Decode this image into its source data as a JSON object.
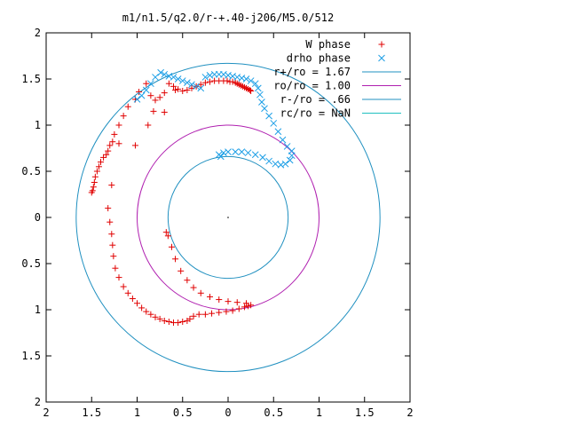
{
  "chart_data": {
    "type": "scatter",
    "title": "m1/n1.5/q2.0/r-+.40-j206/M5.0/512",
    "xlim": [
      2,
      -2
    ],
    "ylim": [
      -2,
      2
    ],
    "x_tick_values": [
      2,
      1.5,
      1,
      0.5,
      0,
      -0.5,
      -1,
      -1.5,
      -2
    ],
    "x_tick_labels": [
      "2",
      "1.5",
      "1",
      "0.5",
      "0",
      "0.5",
      "1",
      "1.5",
      "2"
    ],
    "y_tick_values": [
      2,
      1.5,
      1,
      0.5,
      0,
      -0.5,
      -1,
      -1.5,
      -2
    ],
    "y_tick_labels": [
      "2",
      "1.5",
      "1",
      "0.5",
      "0",
      "0.5",
      "1",
      "1.5",
      "2"
    ],
    "grid": false,
    "legend_position": "top-right",
    "colors": {
      "w_phase": "#e00000",
      "drho_phase": "#1b9ee6",
      "r_plus": "#2090c0",
      "ro": "#b020b0",
      "r_minus": "#2090c0",
      "rc": "#20c0c0"
    },
    "series": [
      {
        "name": "W phase",
        "marker": "plus",
        "color": "#e00000",
        "points": [
          [
            -0.25,
            1.37
          ],
          [
            -0.24,
            1.38
          ],
          [
            -0.22,
            1.39
          ],
          [
            -0.2,
            1.4
          ],
          [
            -0.18,
            1.41
          ],
          [
            -0.16,
            1.42
          ],
          [
            -0.14,
            1.43
          ],
          [
            -0.12,
            1.44
          ],
          [
            -0.1,
            1.45
          ],
          [
            -0.08,
            1.46
          ],
          [
            -0.05,
            1.47
          ],
          [
            -0.02,
            1.47
          ],
          [
            0.01,
            1.48
          ],
          [
            0.05,
            1.48
          ],
          [
            0.1,
            1.48
          ],
          [
            0.15,
            1.48
          ],
          [
            0.2,
            1.47
          ],
          [
            0.25,
            1.46
          ],
          [
            0.3,
            1.44
          ],
          [
            0.35,
            1.42
          ],
          [
            0.4,
            1.4
          ],
          [
            0.45,
            1.38
          ],
          [
            0.5,
            1.37
          ],
          [
            0.55,
            1.39
          ],
          [
            0.6,
            1.42
          ],
          [
            0.65,
            1.45
          ],
          [
            0.7,
            1.35
          ],
          [
            0.75,
            1.3
          ],
          [
            0.8,
            1.27
          ],
          [
            0.85,
            1.32
          ],
          [
            0.9,
            1.45
          ],
          [
            0.98,
            1.36
          ],
          [
            1.02,
            1.28
          ],
          [
            1.1,
            1.2
          ],
          [
            1.15,
            1.1
          ],
          [
            1.2,
            1.0
          ],
          [
            1.25,
            0.9
          ],
          [
            1.27,
            0.82
          ],
          [
            1.3,
            0.78
          ],
          [
            1.32,
            0.72
          ],
          [
            1.34,
            0.68
          ],
          [
            1.37,
            0.65
          ],
          [
            1.4,
            0.6
          ],
          [
            1.42,
            0.55
          ],
          [
            1.44,
            0.5
          ],
          [
            1.46,
            0.44
          ],
          [
            1.47,
            0.38
          ],
          [
            1.48,
            0.33
          ],
          [
            1.49,
            0.29
          ],
          [
            1.5,
            0.27
          ],
          [
            0.58,
            1.38
          ],
          [
            0.7,
            1.14
          ],
          [
            0.82,
            1.15
          ],
          [
            0.88,
            1.0
          ],
          [
            1.02,
            0.78
          ],
          [
            1.2,
            0.8
          ],
          [
            1.28,
            0.35
          ],
          [
            1.32,
            0.1
          ],
          [
            1.3,
            -0.05
          ],
          [
            1.28,
            -0.18
          ],
          [
            1.27,
            -0.3
          ],
          [
            1.26,
            -0.42
          ],
          [
            1.24,
            -0.55
          ],
          [
            1.2,
            -0.65
          ],
          [
            1.15,
            -0.75
          ],
          [
            1.1,
            -0.82
          ],
          [
            1.05,
            -0.88
          ],
          [
            1.0,
            -0.93
          ],
          [
            0.95,
            -0.98
          ],
          [
            0.9,
            -1.02
          ],
          [
            0.85,
            -1.05
          ],
          [
            0.8,
            -1.08
          ],
          [
            0.75,
            -1.1
          ],
          [
            0.7,
            -1.12
          ],
          [
            0.65,
            -1.13
          ],
          [
            0.6,
            -1.14
          ],
          [
            0.55,
            -1.14
          ],
          [
            0.5,
            -1.13
          ],
          [
            0.45,
            -1.12
          ],
          [
            0.42,
            -1.1
          ],
          [
            0.38,
            -1.07
          ],
          [
            0.32,
            -1.05
          ],
          [
            0.25,
            -1.05
          ],
          [
            0.18,
            -1.04
          ],
          [
            0.1,
            -1.03
          ],
          [
            0.02,
            -1.02
          ],
          [
            -0.05,
            -1.01
          ],
          [
            -0.12,
            -0.99
          ],
          [
            -0.18,
            -0.97
          ],
          [
            -0.22,
            -0.96
          ],
          [
            -0.25,
            -0.95
          ],
          [
            -0.2,
            -0.93
          ],
          [
            -0.1,
            -0.92
          ],
          [
            0.0,
            -0.91
          ],
          [
            0.1,
            -0.89
          ],
          [
            0.2,
            -0.86
          ],
          [
            0.3,
            -0.82
          ],
          [
            0.38,
            -0.76
          ],
          [
            0.45,
            -0.68
          ],
          [
            0.52,
            -0.58
          ],
          [
            0.58,
            -0.45
          ],
          [
            0.62,
            -0.32
          ],
          [
            0.66,
            -0.2
          ],
          [
            0.68,
            -0.16
          ]
        ]
      },
      {
        "name": "drho phase",
        "marker": "cross",
        "color": "#1b9ee6",
        "points": [
          [
            0.74,
            1.57
          ],
          [
            0.7,
            1.55
          ],
          [
            0.65,
            1.53
          ],
          [
            0.6,
            1.52
          ],
          [
            0.55,
            1.5
          ],
          [
            0.5,
            1.48
          ],
          [
            0.45,
            1.46
          ],
          [
            0.4,
            1.44
          ],
          [
            0.35,
            1.42
          ],
          [
            0.3,
            1.4
          ],
          [
            0.25,
            1.52
          ],
          [
            0.2,
            1.54
          ],
          [
            0.15,
            1.55
          ],
          [
            0.1,
            1.55
          ],
          [
            0.05,
            1.55
          ],
          [
            0.0,
            1.54
          ],
          [
            -0.05,
            1.53
          ],
          [
            -0.1,
            1.52
          ],
          [
            -0.15,
            1.51
          ],
          [
            -0.2,
            1.5
          ],
          [
            -0.25,
            1.48
          ],
          [
            -0.3,
            1.45
          ],
          [
            -0.33,
            1.4
          ],
          [
            -0.35,
            1.33
          ],
          [
            -0.37,
            1.25
          ],
          [
            -0.4,
            1.18
          ],
          [
            -0.45,
            1.1
          ],
          [
            -0.5,
            1.02
          ],
          [
            -0.55,
            0.93
          ],
          [
            -0.6,
            0.84
          ],
          [
            -0.65,
            0.77
          ],
          [
            -0.7,
            0.72
          ],
          [
            -0.7,
            0.67
          ],
          [
            -0.68,
            0.62
          ],
          [
            -0.63,
            0.58
          ],
          [
            -0.58,
            0.57
          ],
          [
            -0.52,
            0.58
          ],
          [
            -0.45,
            0.61
          ],
          [
            -0.38,
            0.65
          ],
          [
            -0.3,
            0.68
          ],
          [
            -0.22,
            0.7
          ],
          [
            -0.15,
            0.71
          ],
          [
            -0.08,
            0.71
          ],
          [
            0.0,
            0.71
          ],
          [
            0.05,
            0.7
          ],
          [
            0.1,
            0.68
          ],
          [
            0.08,
            0.66
          ],
          [
            1.0,
            1.28
          ],
          [
            0.95,
            1.32
          ],
          [
            0.9,
            1.38
          ],
          [
            0.85,
            1.45
          ],
          [
            0.8,
            1.52
          ]
        ]
      },
      {
        "name": "r+/ro = 1.67",
        "marker": "line",
        "color": "#2090c0",
        "radius": 1.67
      },
      {
        "name": "ro/ro = 1.00",
        "marker": "line",
        "color": "#b020b0",
        "radius": 1.0
      },
      {
        "name": "r-/ro = .66",
        "marker": "line",
        "color": "#2090c0",
        "radius": 0.66
      },
      {
        "name": "rc/ro = NaN",
        "marker": "line",
        "color": "#20c0c0",
        "radius": null
      }
    ]
  }
}
